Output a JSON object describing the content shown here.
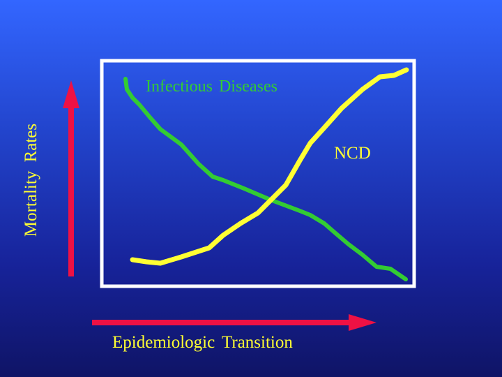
{
  "labels": {
    "y_axis": "Mortality  Rates",
    "x_axis": "Epidemiologic  Transition",
    "curve_infectious": "Infectious Diseases",
    "curve_ncd": "NCD"
  },
  "colors": {
    "infectious": "#33cc33",
    "ncd": "#ffff33",
    "arrows": "#ee1144",
    "frame": "#ffffff"
  }
}
